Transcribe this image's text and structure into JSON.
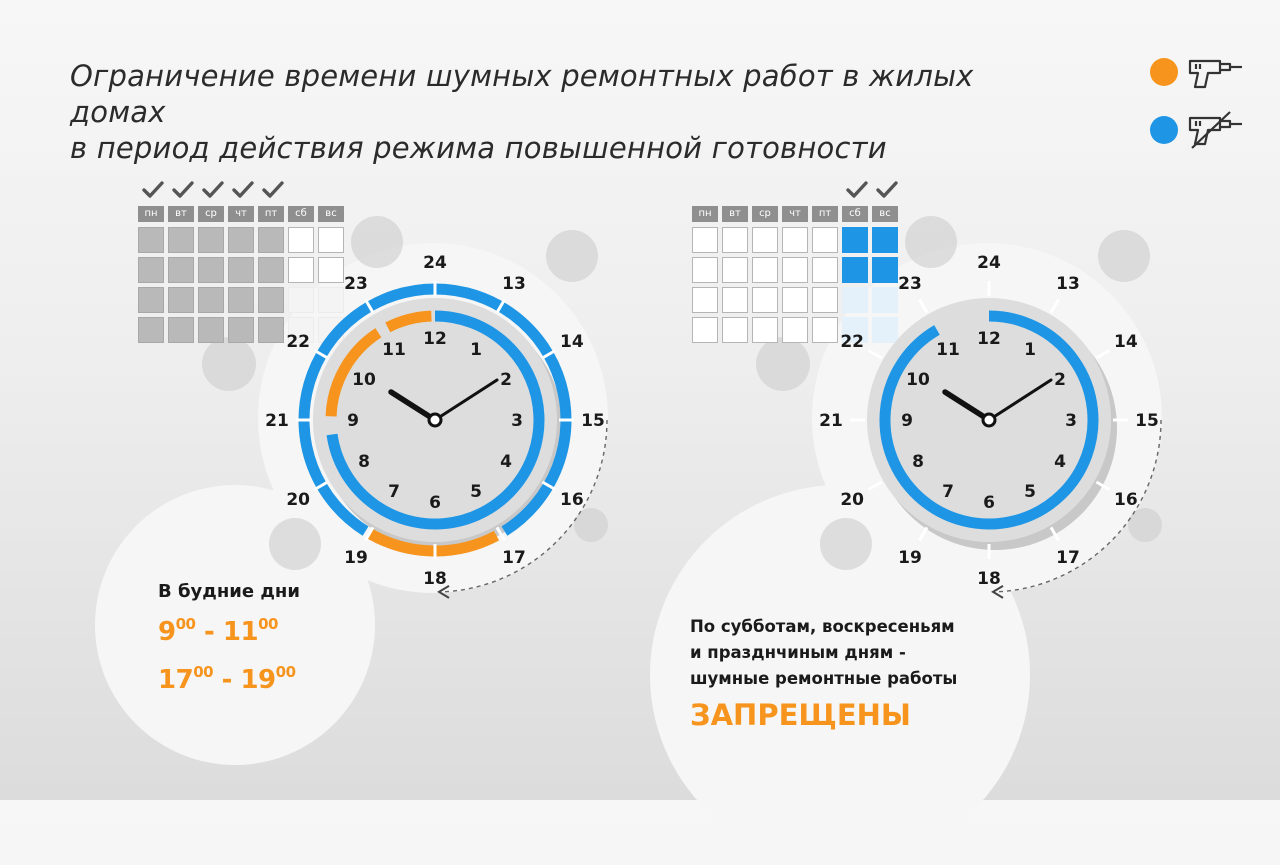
{
  "title": {
    "line1": "Ограничение времени шумных ремонтных работ в жилых домах",
    "line2": "в период действия режима повышенной готовности"
  },
  "legend": [
    {
      "color": "#f7941d",
      "icon": "drill-icon"
    },
    {
      "color": "#1e96e5",
      "icon": "drill-crossed-icon"
    }
  ],
  "days": [
    "пн",
    "вт",
    "ср",
    "чт",
    "пт",
    "сб",
    "вс"
  ],
  "weekday_panel": {
    "label": "В будние дни",
    "ranges": [
      {
        "start": "9",
        "start_min": "00",
        "end": "11",
        "end_min": "00"
      },
      {
        "start": "17",
        "start_min": "00",
        "end": "19",
        "end_min": "00"
      }
    ]
  },
  "weekend_panel": {
    "line1": "По субботам, воскресеньям",
    "line2": "и празднчиным дням -",
    "line3": "шумные ремонтные работы",
    "banned": "ЗАПРЕЩЕНЫ"
  },
  "clock_hours_inner": [
    "12",
    "1",
    "2",
    "3",
    "4",
    "5",
    "6",
    "7",
    "8",
    "9",
    "10",
    "11"
  ],
  "clock_hours_outer": [
    "24",
    "13",
    "14",
    "15",
    "16",
    "17",
    "18",
    "19",
    "20",
    "21",
    "22",
    "23"
  ],
  "colors": {
    "orange": "#f7941d",
    "blue": "#1e96e5"
  }
}
